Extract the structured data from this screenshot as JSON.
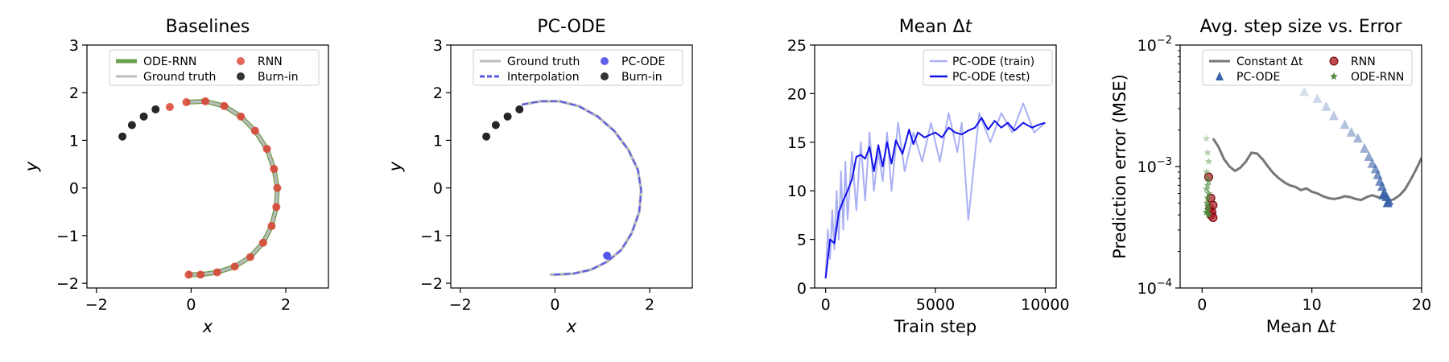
{
  "chart_data": [
    {
      "type": "line",
      "title": "Baselines",
      "xlabel": "x",
      "ylabel": "y",
      "xlim": [
        -2.2,
        2.9
      ],
      "ylim": [
        -2.1,
        3.0
      ],
      "xticks": [
        "−2",
        "0",
        "2"
      ],
      "yticks": [
        "−2",
        "−1",
        "0",
        "1",
        "2",
        "3"
      ],
      "legend_position": "top-center",
      "series": [
        {
          "name": "ODE-RNN",
          "kind": "line",
          "color": "#6a9f4c",
          "x": [
            -0.1,
            0.3,
            0.7,
            1.05,
            1.35,
            1.6,
            1.75,
            1.82,
            1.8,
            1.7,
            1.52,
            1.25,
            0.92,
            0.55,
            0.2,
            -0.08
          ],
          "y": [
            1.8,
            1.82,
            1.72,
            1.5,
            1.2,
            0.82,
            0.4,
            0.0,
            -0.4,
            -0.8,
            -1.15,
            -1.45,
            -1.65,
            -1.77,
            -1.82,
            -1.82
          ]
        },
        {
          "name": "Ground truth",
          "kind": "line",
          "color": "#bbbbbb",
          "x": [
            -0.1,
            0.3,
            0.7,
            1.05,
            1.35,
            1.6,
            1.75,
            1.82,
            1.8,
            1.7,
            1.52,
            1.25,
            0.92,
            0.55,
            0.2,
            -0.08
          ],
          "y": [
            1.8,
            1.82,
            1.72,
            1.5,
            1.2,
            0.82,
            0.4,
            0.0,
            -0.4,
            -0.8,
            -1.15,
            -1.45,
            -1.65,
            -1.77,
            -1.82,
            -1.82
          ]
        },
        {
          "name": "RNN",
          "kind": "scatter",
          "color": "#d9412f",
          "x": [
            -0.45,
            -0.1,
            0.3,
            0.7,
            1.05,
            1.35,
            1.6,
            1.75,
            1.82,
            1.8,
            1.7,
            1.52,
            1.25,
            0.92,
            0.55,
            0.2,
            -0.05
          ],
          "y": [
            1.7,
            1.8,
            1.82,
            1.72,
            1.5,
            1.2,
            0.82,
            0.4,
            0.0,
            -0.4,
            -0.8,
            -1.15,
            -1.45,
            -1.65,
            -1.77,
            -1.82,
            -1.82
          ]
        },
        {
          "name": "Burn-in",
          "kind": "scatter",
          "color": "#000000",
          "x": [
            -1.45,
            -1.25,
            -1.0,
            -0.75
          ],
          "y": [
            1.08,
            1.32,
            1.5,
            1.65
          ]
        }
      ]
    },
    {
      "type": "line",
      "title": "PC-ODE",
      "xlabel": "x",
      "ylabel": "y",
      "xlim": [
        -2.2,
        2.9
      ],
      "ylim": [
        -2.1,
        3.0
      ],
      "xticks": [
        "−2",
        "0",
        "2"
      ],
      "yticks": [
        "−2",
        "−1",
        "0",
        "1",
        "2",
        "3"
      ],
      "legend_position": "top-center",
      "series": [
        {
          "name": "Ground truth",
          "kind": "line",
          "color": "#bbbbbb",
          "x": [
            -0.7,
            -0.3,
            0.1,
            0.5,
            0.9,
            1.25,
            1.55,
            1.75,
            1.82,
            1.78,
            1.62,
            1.4,
            1.1,
            0.75,
            0.38,
            0.0,
            -0.1
          ],
          "y": [
            1.75,
            1.82,
            1.82,
            1.72,
            1.5,
            1.2,
            0.8,
            0.38,
            -0.05,
            -0.5,
            -0.95,
            -1.3,
            -1.55,
            -1.72,
            -1.8,
            -1.82,
            -1.82
          ]
        },
        {
          "name": "Interpolation",
          "kind": "dashed",
          "color": "#5a5ae6",
          "x": [
            -0.7,
            -0.3,
            0.1,
            0.5,
            0.9,
            1.25,
            1.55,
            1.75,
            1.82,
            1.78,
            1.62,
            1.4,
            1.1,
            0.75,
            0.38,
            0.0,
            -0.1
          ],
          "y": [
            1.75,
            1.82,
            1.82,
            1.72,
            1.5,
            1.2,
            0.8,
            0.38,
            -0.05,
            -0.5,
            -0.95,
            -1.3,
            -1.55,
            -1.72,
            -1.8,
            -1.82,
            -1.82
          ]
        },
        {
          "name": "PC-ODE",
          "kind": "scatter",
          "color": "#3838e8",
          "x": [
            1.1
          ],
          "y": [
            -1.42
          ]
        },
        {
          "name": "Burn-in",
          "kind": "scatter",
          "color": "#000000",
          "x": [
            -1.45,
            -1.25,
            -1.0,
            -0.75
          ],
          "y": [
            1.08,
            1.32,
            1.5,
            1.65
          ]
        }
      ]
    },
    {
      "type": "line",
      "title": "Mean Δt",
      "xlabel": "Train step",
      "ylabel": "",
      "xlim": [
        -500,
        10500
      ],
      "ylim": [
        0,
        25
      ],
      "xticks": [
        "0",
        "5000",
        "10000"
      ],
      "yticks": [
        "0",
        "5",
        "10",
        "15",
        "20",
        "25"
      ],
      "legend_position": "top-right",
      "series": [
        {
          "name": "PC-ODE (train)",
          "color": "#aab0f4",
          "x": [
            0,
            100,
            200,
            300,
            400,
            500,
            600,
            700,
            800,
            900,
            1000,
            1200,
            1400,
            1600,
            1800,
            2000,
            2200,
            2400,
            2600,
            2800,
            3000,
            3300,
            3600,
            4000,
            4400,
            4800,
            5200,
            5600,
            6000,
            6200,
            6500,
            7000,
            7500,
            8000,
            8500,
            9000,
            9500,
            10000
          ],
          "y": [
            1,
            6,
            3,
            8,
            4,
            10,
            5,
            12,
            6,
            13,
            7,
            14,
            8,
            15,
            9,
            16,
            10,
            14,
            11,
            16,
            10,
            17,
            12,
            16,
            13,
            17,
            13,
            18,
            14,
            17,
            7,
            18,
            15,
            18,
            16,
            19,
            16,
            17
          ]
        },
        {
          "name": "PC-ODE (test)",
          "color": "#1010e8",
          "x": [
            0,
            200,
            400,
            600,
            800,
            1000,
            1200,
            1400,
            1600,
            1800,
            2000,
            2200,
            2400,
            2600,
            2800,
            3000,
            3200,
            3500,
            3800,
            4000,
            4200,
            4500,
            4800,
            5000,
            5300,
            5600,
            5900,
            6200,
            6500,
            6800,
            7100,
            7400,
            7700,
            8000,
            8300,
            8600,
            9000,
            9400,
            9700,
            10000
          ],
          "y": [
            1,
            5,
            4.6,
            7.8,
            9,
            10,
            11.2,
            13.5,
            13.7,
            13.3,
            14.5,
            12,
            14.7,
            12.5,
            15,
            12.8,
            15.2,
            13.8,
            16.3,
            14.8,
            16,
            15.5,
            15.8,
            16,
            15.5,
            16.5,
            16,
            15.8,
            16.2,
            16.5,
            17.5,
            16.3,
            17.2,
            16.5,
            17,
            16.2,
            17,
            16.5,
            16.8,
            17
          ]
        }
      ]
    },
    {
      "type": "scatter",
      "title": "Avg. step size vs. Error",
      "xlabel": "Mean Δt",
      "ylabel": "Prediction error (MSE)",
      "xscale": "linear",
      "yscale": "log",
      "xlim": [
        -2,
        20
      ],
      "ylim": [
        0.0001,
        0.01
      ],
      "xticks": [
        "0",
        "10",
        "20"
      ],
      "yticks": [
        "10−4",
        "10−3",
        "10−2"
      ],
      "legend_position": "top-center",
      "series": [
        {
          "name": "Constant Δt",
          "kind": "line",
          "color": "#777777",
          "x": [
            1.0,
            1.5,
            2.0,
            2.5,
            3.0,
            3.5,
            4.0,
            4.5,
            5.0,
            5.5,
            6.0,
            6.5,
            7.0,
            7.5,
            8.0,
            8.5,
            9.0,
            9.5,
            10.0,
            10.5,
            11.0,
            11.5,
            12.0,
            12.5,
            13.0,
            13.5,
            14.0,
            14.5,
            15.0,
            15.5,
            16.0,
            16.5,
            17.0,
            17.5,
            18.0,
            18.5,
            19.0,
            19.5,
            20.0
          ],
          "y": [
            0.0017,
            0.00145,
            0.00115,
            0.001,
            0.00092,
            0.00098,
            0.0011,
            0.0013,
            0.00128,
            0.00115,
            0.001,
            0.00088,
            0.0008,
            0.00074,
            0.0007,
            0.00068,
            0.00064,
            0.00066,
            0.00062,
            0.0006,
            0.00057,
            0.00055,
            0.00054,
            0.00055,
            0.00057,
            0.00056,
            0.00054,
            0.00053,
            0.00056,
            0.00058,
            0.00056,
            0.00055,
            0.00052,
            0.00054,
            0.00058,
            0.00065,
            0.00078,
            0.00095,
            0.00118
          ]
        },
        {
          "name": "RNN",
          "kind": "circle",
          "color": "#b0202a",
          "x": [
            0.6,
            0.7,
            0.8,
            0.9,
            1.0,
            1.0,
            0.8
          ],
          "y": [
            0.00082,
            0.00045,
            0.0004,
            0.00042,
            0.00048,
            0.00038,
            0.00055
          ]
        },
        {
          "name": "PC-ODE",
          "kind": "triangle",
          "color": "#3a63a8",
          "x": [
            9.3,
            10.5,
            11.3,
            12.0,
            13.0,
            13.6,
            14.2,
            14.8,
            15.2,
            15.5,
            15.8,
            16.0,
            16.2,
            16.4,
            16.6,
            16.8,
            17.0,
            16.5,
            16.9
          ],
          "y": [
            0.0041,
            0.0036,
            0.0031,
            0.0026,
            0.0022,
            0.0019,
            0.0017,
            0.0014,
            0.0012,
            0.00105,
            0.00095,
            0.00085,
            0.00075,
            0.00068,
            0.0006,
            0.00056,
            0.00052,
            0.00058,
            0.0005
          ]
        },
        {
          "name": "ODE-RNN",
          "kind": "star",
          "color": "#4a8a3a",
          "x": [
            0.4,
            0.5,
            0.6,
            0.4,
            0.5,
            0.6,
            0.5,
            0.4,
            0.6,
            0.5,
            0.45,
            0.55,
            0.5,
            0.6,
            0.4
          ],
          "y": [
            0.0017,
            0.0013,
            0.0011,
            0.0009,
            0.0008,
            0.00075,
            0.0007,
            0.00065,
            0.0006,
            0.00055,
            0.0005,
            0.00047,
            0.00044,
            0.0004,
            0.00042
          ]
        }
      ]
    }
  ]
}
